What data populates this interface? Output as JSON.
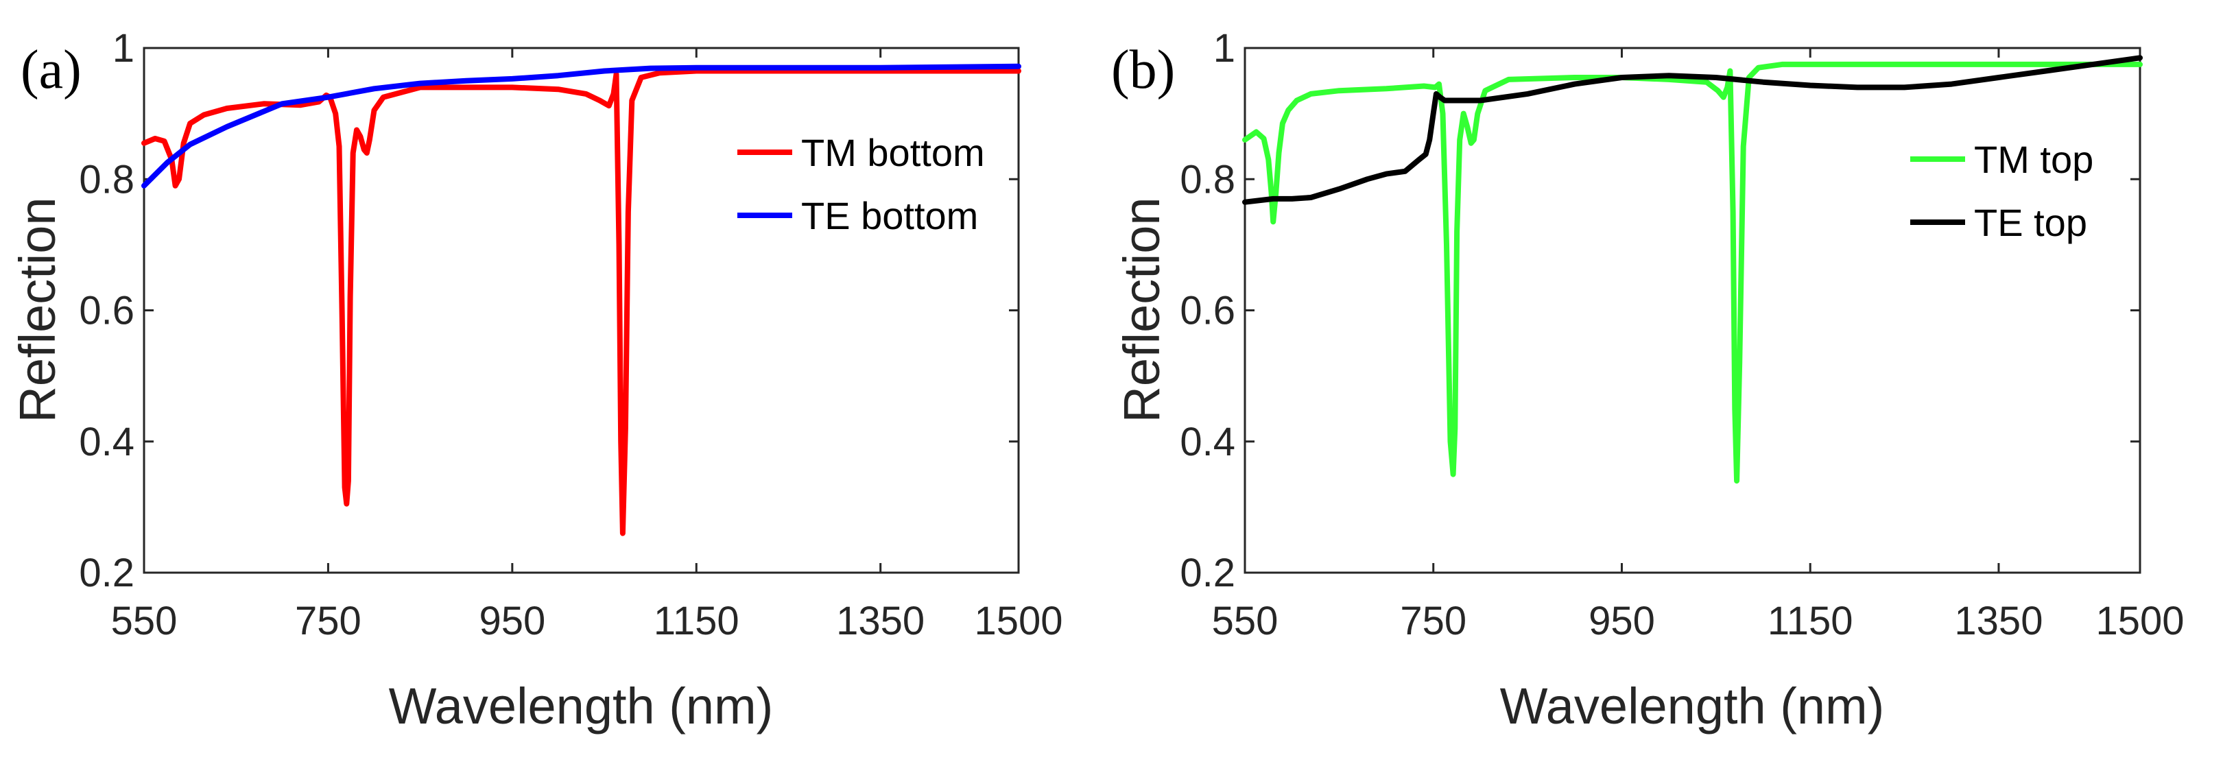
{
  "chart_data": [
    {
      "type": "line",
      "panel_label": "(a)",
      "xlabel": "Wavelength (nm)",
      "ylabel": "Reflection",
      "xlim": [
        550,
        1500
      ],
      "ylim": [
        0.2,
        1.0
      ],
      "xticks": [
        "550",
        "750",
        "950",
        "1150",
        "1350",
        "1500"
      ],
      "yticks": [
        "0.2",
        "0.4",
        "0.6",
        "0.8",
        "1"
      ],
      "legend_position": "right",
      "series": [
        {
          "name": "TM bottom",
          "color": "#ff0000",
          "x": [
            550,
            562,
            572,
            580,
            584,
            588,
            593,
            600,
            615,
            640,
            680,
            720,
            740,
            748,
            752,
            758,
            762,
            765,
            768,
            770,
            772,
            774,
            777,
            781,
            785,
            789,
            792,
            795,
            800,
            810,
            850,
            900,
            950,
            1000,
            1030,
            1045,
            1055,
            1060,
            1063,
            1066,
            1068,
            1070,
            1073,
            1076,
            1080,
            1090,
            1110,
            1150,
            1250,
            1350,
            1500
          ],
          "y": [
            0.855,
            0.862,
            0.858,
            0.83,
            0.79,
            0.8,
            0.855,
            0.885,
            0.898,
            0.908,
            0.915,
            0.913,
            0.918,
            0.928,
            0.925,
            0.9,
            0.85,
            0.6,
            0.33,
            0.305,
            0.34,
            0.62,
            0.84,
            0.875,
            0.865,
            0.845,
            0.84,
            0.86,
            0.905,
            0.925,
            0.94,
            0.94,
            0.94,
            0.937,
            0.93,
            0.92,
            0.912,
            0.93,
            0.96,
            0.7,
            0.4,
            0.26,
            0.42,
            0.75,
            0.92,
            0.955,
            0.962,
            0.965,
            0.965,
            0.965,
            0.965
          ]
        },
        {
          "name": "TE bottom",
          "color": "#0000ff",
          "x": [
            550,
            575,
            600,
            640,
            700,
            750,
            800,
            850,
            900,
            950,
            1000,
            1050,
            1100,
            1150,
            1250,
            1350,
            1500
          ],
          "y": [
            0.79,
            0.825,
            0.853,
            0.88,
            0.915,
            0.925,
            0.938,
            0.946,
            0.95,
            0.953,
            0.958,
            0.965,
            0.969,
            0.97,
            0.97,
            0.97,
            0.972
          ]
        }
      ]
    },
    {
      "type": "line",
      "panel_label": "(b)",
      "xlabel": "Wavelength (nm)",
      "ylabel": "Reflection",
      "xlim": [
        550,
        1500
      ],
      "ylim": [
        0.2,
        1.0
      ],
      "xticks": [
        "550",
        "750",
        "950",
        "1150",
        "1350",
        "1500"
      ],
      "yticks": [
        "0.2",
        "0.4",
        "0.6",
        "0.8",
        "1"
      ],
      "legend_position": "right",
      "series": [
        {
          "name": "TM top",
          "color": "#33ff33",
          "x": [
            550,
            562,
            570,
            575,
            578,
            580,
            583,
            586,
            590,
            596,
            605,
            620,
            650,
            700,
            740,
            752,
            756,
            760,
            764,
            768,
            771,
            773,
            775,
            778,
            782,
            786,
            790,
            793,
            797,
            805,
            830,
            900,
            950,
            1000,
            1040,
            1052,
            1058,
            1062,
            1065,
            1068,
            1070,
            1072,
            1075,
            1079,
            1085,
            1095,
            1120,
            1200,
            1300,
            1400,
            1500
          ],
          "y": [
            0.86,
            0.872,
            0.862,
            0.83,
            0.78,
            0.735,
            0.78,
            0.84,
            0.885,
            0.905,
            0.92,
            0.93,
            0.935,
            0.938,
            0.942,
            0.94,
            0.945,
            0.9,
            0.7,
            0.4,
            0.35,
            0.42,
            0.72,
            0.86,
            0.9,
            0.88,
            0.855,
            0.86,
            0.9,
            0.935,
            0.952,
            0.955,
            0.955,
            0.952,
            0.948,
            0.935,
            0.925,
            0.94,
            0.965,
            0.75,
            0.45,
            0.34,
            0.52,
            0.85,
            0.955,
            0.97,
            0.975,
            0.975,
            0.975,
            0.975,
            0.975
          ]
        },
        {
          "name": "TE top",
          "color": "#000000",
          "x": [
            550,
            580,
            600,
            620,
            650,
            680,
            700,
            720,
            735,
            742,
            746,
            750,
            753,
            757,
            762,
            770,
            800,
            850,
            900,
            950,
            1000,
            1050,
            1100,
            1150,
            1200,
            1250,
            1300,
            1350,
            1400,
            1450,
            1500
          ],
          "y": [
            0.765,
            0.77,
            0.77,
            0.772,
            0.785,
            0.8,
            0.808,
            0.812,
            0.83,
            0.838,
            0.86,
            0.9,
            0.93,
            0.925,
            0.92,
            0.92,
            0.92,
            0.93,
            0.945,
            0.955,
            0.958,
            0.955,
            0.948,
            0.943,
            0.94,
            0.94,
            0.945,
            0.955,
            0.965,
            0.975,
            0.985
          ]
        }
      ]
    }
  ]
}
